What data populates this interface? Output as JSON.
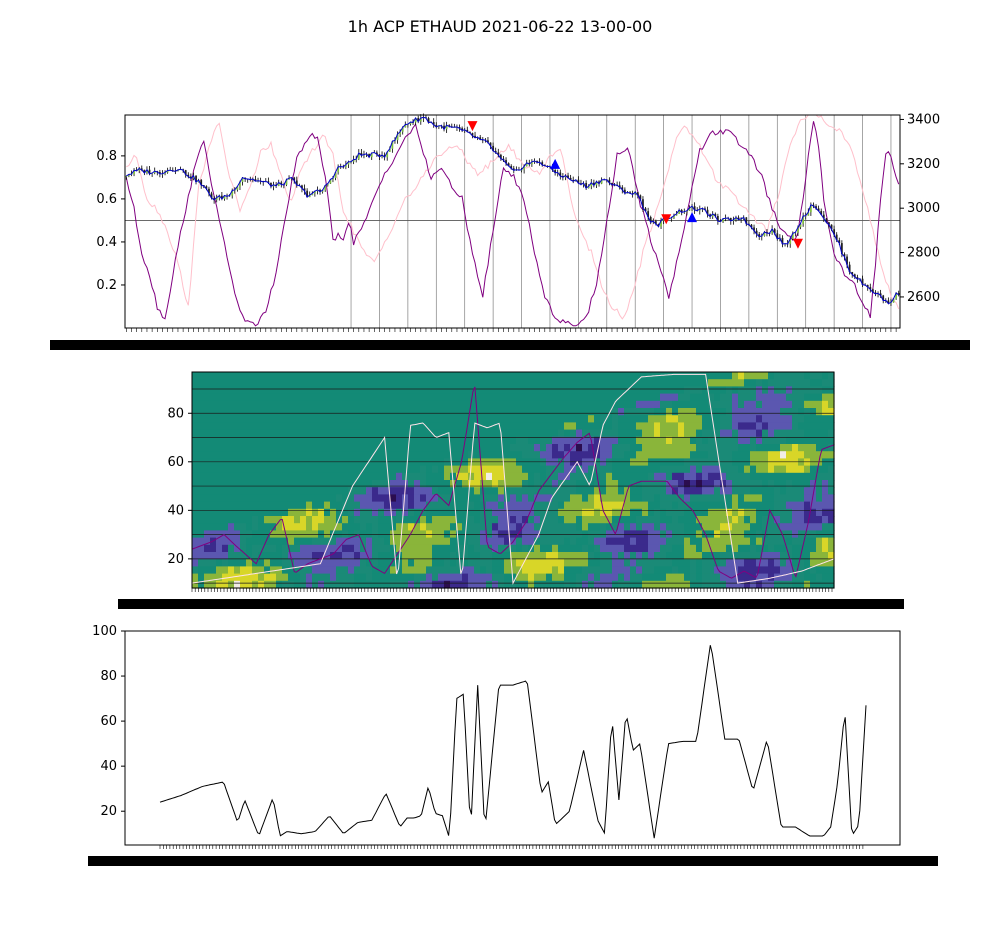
{
  "figure": {
    "title": "1h ACP ETHAUD 2021-06-22 13-00-00"
  },
  "chart_data": [
    {
      "panel": "price-and-oscillators",
      "type": "line",
      "left_axis": {
        "ticks": [
          0.2,
          0.4,
          0.6,
          0.8
        ],
        "ylim": [
          0.0,
          0.99
        ]
      },
      "right_axis": {
        "ticks": [
          2600,
          2800,
          3000,
          3200,
          3400
        ],
        "ylim": [
          2460,
          3420
        ]
      },
      "n_bars": 300,
      "horizontal_line": 0.5,
      "series": [
        {
          "role": "price-close",
          "axis": "right",
          "color": "#0000cc",
          "knots_index": [
            0,
            5,
            12,
            20,
            28,
            34,
            40,
            45,
            52,
            58,
            64,
            70,
            76,
            82,
            86,
            90,
            100,
            108,
            115,
            120,
            128,
            135,
            140,
            145,
            150,
            155,
            160,
            165,
            170,
            178,
            185,
            192,
            198,
            202,
            205,
            210,
            215,
            220,
            225,
            230,
            238,
            245,
            250,
            255,
            258,
            262,
            266,
            270,
            275,
            280,
            285,
            290,
            295,
            299
          ],
          "knots_value": [
            3150,
            3170,
            3160,
            3180,
            3120,
            3040,
            3060,
            3140,
            3120,
            3100,
            3130,
            3060,
            3080,
            3180,
            3200,
            3240,
            3240,
            3380,
            3410,
            3370,
            3360,
            3320,
            3290,
            3220,
            3160,
            3200,
            3210,
            3170,
            3140,
            3100,
            3130,
            3080,
            3060,
            2960,
            2920,
            2960,
            2990,
            3000,
            2980,
            2940,
            2960,
            2880,
            2900,
            2830,
            2880,
            2960,
            3020,
            2960,
            2860,
            2720,
            2660,
            2620,
            2570,
            2620
          ]
        },
        {
          "role": "oscillator-1",
          "axis": "left",
          "color": "#800080",
          "knots_index": [
            0,
            3,
            6,
            9,
            12,
            15,
            18,
            22,
            26,
            30,
            34,
            38,
            42,
            46,
            50,
            54,
            58,
            62,
            66,
            70,
            74,
            78,
            80,
            82,
            84,
            86,
            88,
            92,
            96,
            100,
            104,
            108,
            112,
            114,
            118,
            122,
            126,
            130,
            134,
            138,
            142,
            146,
            150,
            154,
            158,
            162,
            166,
            170,
            174,
            178,
            182,
            186,
            190,
            194,
            198,
            202,
            206,
            210,
            214,
            218,
            222,
            226,
            230,
            234,
            238,
            242,
            246,
            250,
            254,
            258,
            260,
            262,
            264,
            266,
            268,
            270,
            274,
            278,
            282,
            286,
            288,
            290,
            292,
            294,
            296,
            298,
            299
          ],
          "knots_value": [
            0.7,
            0.55,
            0.35,
            0.25,
            0.1,
            0.04,
            0.25,
            0.5,
            0.72,
            0.88,
            0.6,
            0.4,
            0.15,
            0.03,
            0.01,
            0.08,
            0.25,
            0.55,
            0.78,
            0.88,
            0.9,
            0.62,
            0.4,
            0.43,
            0.42,
            0.5,
            0.4,
            0.48,
            0.6,
            0.72,
            0.8,
            0.88,
            0.95,
            0.84,
            0.7,
            0.75,
            0.65,
            0.6,
            0.35,
            0.15,
            0.45,
            0.75,
            0.7,
            0.6,
            0.35,
            0.15,
            0.05,
            0.02,
            0.01,
            0.05,
            0.2,
            0.5,
            0.8,
            0.85,
            0.62,
            0.45,
            0.3,
            0.15,
            0.35,
            0.6,
            0.82,
            0.9,
            0.92,
            0.9,
            0.85,
            0.8,
            0.7,
            0.55,
            0.45,
            0.4,
            0.45,
            0.6,
            0.8,
            0.95,
            0.85,
            0.6,
            0.35,
            0.25,
            0.2,
            0.1,
            0.05,
            0.3,
            0.6,
            0.82,
            0.8,
            0.7,
            0.68
          ]
        },
        {
          "role": "oscillator-2",
          "axis": "left",
          "color": "#ffc0cb",
          "knots_index": [
            0,
            4,
            8,
            12,
            16,
            20,
            24,
            28,
            32,
            36,
            40,
            44,
            48,
            52,
            56,
            60,
            64,
            68,
            72,
            76,
            80,
            84,
            88,
            92,
            96,
            100,
            104,
            108,
            112,
            116,
            120,
            124,
            128,
            132,
            136,
            140,
            144,
            148,
            152,
            156,
            160,
            164,
            168,
            172,
            176,
            180,
            184,
            188,
            192,
            196,
            200,
            204,
            208,
            212,
            216,
            220,
            224,
            228,
            232,
            236,
            240,
            244,
            248,
            252,
            256,
            260,
            264,
            268,
            272,
            276,
            280,
            284,
            288,
            292,
            296,
            299
          ],
          "knots_value": [
            0.75,
            0.8,
            0.6,
            0.55,
            0.45,
            0.3,
            0.1,
            0.65,
            0.85,
            0.95,
            0.7,
            0.55,
            0.65,
            0.82,
            0.85,
            0.7,
            0.58,
            0.75,
            0.82,
            0.9,
            0.8,
            0.55,
            0.45,
            0.35,
            0.3,
            0.4,
            0.5,
            0.6,
            0.65,
            0.72,
            0.8,
            0.82,
            0.85,
            0.78,
            0.72,
            0.75,
            0.8,
            0.85,
            0.78,
            0.74,
            0.72,
            0.8,
            0.84,
            0.6,
            0.45,
            0.35,
            0.2,
            0.1,
            0.05,
            0.15,
            0.35,
            0.5,
            0.65,
            0.85,
            0.95,
            0.88,
            0.8,
            0.7,
            0.65,
            0.6,
            0.55,
            0.5,
            0.45,
            0.6,
            0.8,
            0.95,
            0.99,
            0.99,
            0.95,
            0.92,
            0.85,
            0.7,
            0.5,
            0.3,
            0.15,
            0.1
          ]
        }
      ],
      "signals": [
        {
          "direction": "sell",
          "color": "#ff0000",
          "bar": 134,
          "price": 3370
        },
        {
          "direction": "buy",
          "color": "#0000ff",
          "bar": 166,
          "price": 3200
        },
        {
          "direction": "sell",
          "color": "#ff0000",
          "bar": 209,
          "price": 2950
        },
        {
          "direction": "buy",
          "color": "#0000ff",
          "bar": 219,
          "price": 2960
        },
        {
          "direction": "sell",
          "color": "#ff0000",
          "bar": 260,
          "price": 2840
        }
      ],
      "vertical_gridlines_at_bar": [
        87,
        98,
        109,
        120,
        131,
        142,
        153,
        164,
        175,
        186,
        197,
        208,
        219,
        230,
        241,
        252,
        263,
        274,
        285,
        296
      ]
    },
    {
      "panel": "cycle-spectrogram",
      "type": "heatmap",
      "y_axis": {
        "ticks": [
          20,
          40,
          60,
          80
        ],
        "ylim": [
          8,
          97
        ]
      },
      "colormap": [
        "#2b0d4f",
        "#3b2a8c",
        "#5b57b0",
        "#1a8a77",
        "#138a76",
        "#8ab53a",
        "#d8d628",
        "#f2ede5"
      ],
      "horizontal_gridlines": [
        10,
        20,
        30,
        40,
        50,
        60,
        70,
        80,
        90
      ],
      "series": [
        {
          "role": "dominant-cycle",
          "color": "#800080",
          "knots_x": [
            0,
            0.03,
            0.05,
            0.07,
            0.1,
            0.12,
            0.14,
            0.16,
            0.18,
            0.2,
            0.22,
            0.24,
            0.26,
            0.28,
            0.3,
            0.32,
            0.34,
            0.36,
            0.38,
            0.4,
            0.42,
            0.44,
            0.46,
            0.48,
            0.5,
            0.52,
            0.54,
            0.56,
            0.58,
            0.6,
            0.62,
            0.64,
            0.66,
            0.68,
            0.7,
            0.72,
            0.74,
            0.76,
            0.78,
            0.8,
            0.82,
            0.84,
            0.86,
            0.88,
            0.9,
            0.92,
            0.94,
            0.96,
            0.98,
            1.0
          ],
          "knots_y": [
            24,
            27,
            30,
            25,
            18,
            30,
            37,
            14,
            18,
            20,
            22,
            28,
            30,
            17,
            14,
            22,
            30,
            40,
            47,
            42,
            60,
            93,
            25,
            22,
            27,
            35,
            48,
            55,
            62,
            68,
            72,
            40,
            30,
            50,
            52,
            52,
            52,
            45,
            40,
            30,
            15,
            12,
            15,
            12,
            40,
            30,
            12,
            35,
            65,
            67
          ]
        },
        {
          "role": "secondary-cycle",
          "color": "#ffe4ea",
          "knots_x": [
            0,
            0.05,
            0.1,
            0.15,
            0.2,
            0.25,
            0.3,
            0.32,
            0.34,
            0.36,
            0.38,
            0.4,
            0.42,
            0.44,
            0.46,
            0.48,
            0.5,
            0.52,
            0.54,
            0.56,
            0.6,
            0.62,
            0.64,
            0.66,
            0.7,
            0.75,
            0.8,
            0.85,
            0.9,
            0.95,
            1.0
          ],
          "knots_y": [
            10,
            12,
            14,
            16,
            18,
            50,
            70,
            10,
            75,
            76,
            70,
            72,
            10,
            76,
            74,
            76,
            10,
            20,
            30,
            45,
            60,
            50,
            75,
            85,
            95,
            96,
            96,
            10,
            12,
            15,
            20
          ]
        }
      ]
    },
    {
      "panel": "dominant-cycle-period",
      "type": "line",
      "color": "#000000",
      "y_axis": {
        "ticks": [
          20,
          40,
          60,
          80,
          100
        ],
        "ylim": [
          5,
          100
        ]
      },
      "knots_x": [
        0,
        0.03,
        0.06,
        0.09,
        0.1,
        0.11,
        0.12,
        0.14,
        0.16,
        0.17,
        0.18,
        0.2,
        0.22,
        0.24,
        0.26,
        0.28,
        0.3,
        0.32,
        0.34,
        0.35,
        0.36,
        0.37,
        0.38,
        0.39,
        0.4,
        0.41,
        0.42,
        0.43,
        0.44,
        0.45,
        0.46,
        0.48,
        0.5,
        0.52,
        0.54,
        0.55,
        0.56,
        0.58,
        0.6,
        0.62,
        0.63,
        0.64,
        0.65,
        0.66,
        0.67,
        0.68,
        0.7,
        0.72,
        0.74,
        0.76,
        0.78,
        0.8,
        0.82,
        0.84,
        0.86,
        0.88,
        0.9,
        0.92,
        0.94,
        0.95,
        0.96,
        0.97,
        0.98,
        0.99,
        1.0
      ],
      "values": [
        24,
        27,
        31,
        33,
        24,
        15,
        25,
        9,
        26,
        9,
        11,
        10,
        11,
        18,
        10,
        15,
        16,
        28,
        13,
        17,
        17,
        18,
        31,
        19,
        18,
        8,
        70,
        72,
        11,
        76,
        11,
        76,
        76,
        78,
        28,
        33,
        14,
        20,
        47,
        16,
        10,
        62,
        25,
        64,
        47,
        50,
        8,
        50,
        51,
        51,
        95,
        52,
        52,
        29,
        52,
        13,
        13,
        9,
        9,
        13,
        33,
        65,
        9,
        14,
        67
      ]
    }
  ]
}
